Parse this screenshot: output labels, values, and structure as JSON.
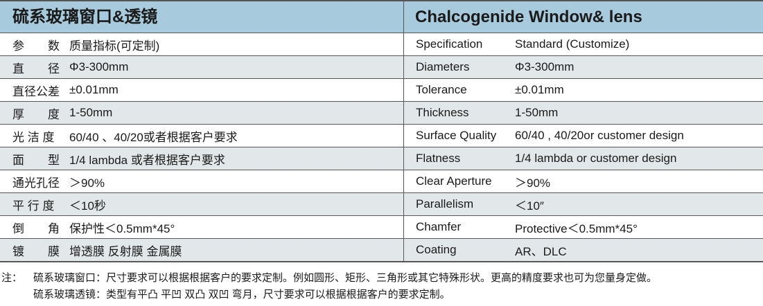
{
  "header": {
    "cn_title": "硫系玻璃窗口&透镜",
    "en_title": "Chalcogenide Window&  lens"
  },
  "rows": [
    {
      "cn_key": "参　　数",
      "cn_val": "质量指标(可定制)",
      "en_key": "Specification",
      "en_val": "Standard (Customize)"
    },
    {
      "cn_key": "直　　径",
      "cn_val": "Φ3-300mm",
      "en_key": "Diameters",
      "en_val": "Φ3-300mm"
    },
    {
      "cn_key": "直径公差",
      "cn_val": "±0.01mm",
      "en_key": "Tolerance",
      "en_val": "±0.01mm"
    },
    {
      "cn_key": "厚　　度",
      "cn_val": "1-50mm",
      "en_key": "Thickness",
      "en_val": "1-50mm"
    },
    {
      "cn_key": "光 洁 度",
      "cn_val": "60/40 、40/20或者根据客户要求",
      "en_key": "Surface Quality",
      "en_val": "60/40 , 40/20or customer design"
    },
    {
      "cn_key": "面　　型",
      "cn_val": "1/4 lambda 或者根据客户要求",
      "en_key": "Flatness",
      "en_val": "1/4 lambda or customer design"
    },
    {
      "cn_key": "通光孔径",
      "cn_val": "＞90%",
      "en_key": "Clear Aperture",
      "en_val": "＞90%"
    },
    {
      "cn_key": "平 行 度",
      "cn_val": "＜10秒",
      "en_key": "Parallelism",
      "en_val": "＜10″"
    },
    {
      "cn_key": "倒　　角",
      "cn_val": "保护性＜0.5mm*45°",
      "en_key": "Chamfer",
      "en_val": "Protective＜0.5mm*45°"
    },
    {
      "cn_key": "镀　　膜",
      "cn_val": "增透膜 反射膜 金属膜",
      "en_key": "Coating",
      "en_val": "AR、DLC"
    }
  ],
  "notes": {
    "label": "注：",
    "line1": "硫系玻璃窗口：尺寸要求可以根据根据客户的要求定制。例如圆形、矩形、三角形或其它特殊形状。更高的精度要求也可为您量身定做。",
    "line2": "硫系玻璃透镜：类型有平凸 平凹 双凸 双凹 弯月，尺寸要求可以根据根据客户的要求定制。"
  }
}
